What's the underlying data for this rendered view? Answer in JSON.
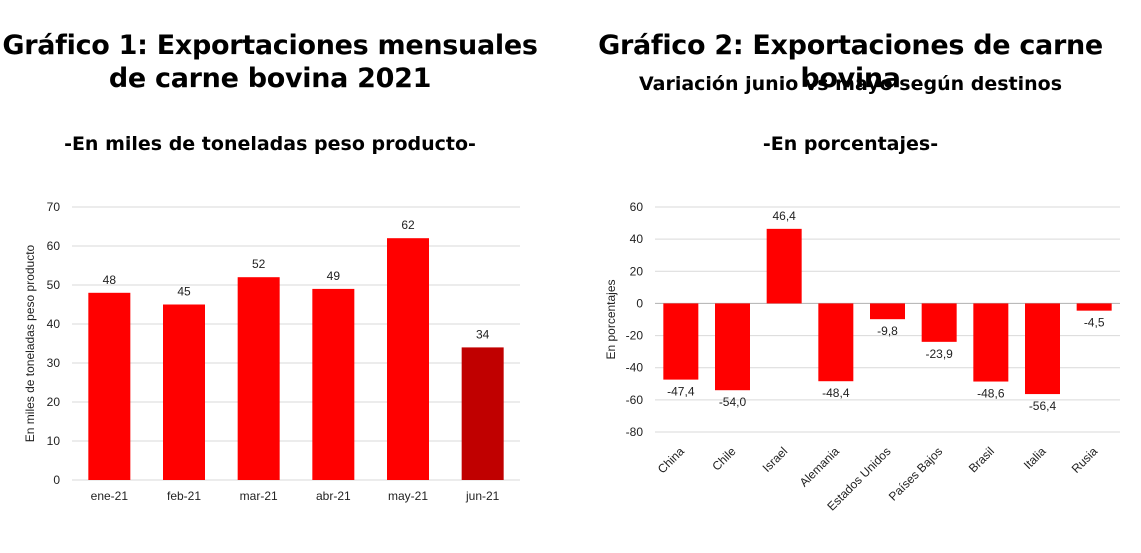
{
  "chart_data": [
    {
      "type": "bar",
      "title": "Gráfico 1: Exportaciones mensuales de carne bovina 2021",
      "subtitle": "-En miles de toneladas peso producto-",
      "xlabel": "",
      "ylabel": "En  miles de toneladas peso producto",
      "categories": [
        "ene-21",
        "feb-21",
        "mar-21",
        "abr-21",
        "may-21",
        "jun-21"
      ],
      "values": [
        48,
        45,
        52,
        49,
        62,
        34
      ],
      "value_labels": [
        "48",
        "45",
        "52",
        "49",
        "62",
        "34"
      ],
      "y_ticks": [
        "0",
        "10",
        "20",
        "30",
        "40",
        "50",
        "60",
        "70"
      ],
      "ylim": [
        0,
        70
      ],
      "grid": true,
      "bar_colors": [
        "#ff0000",
        "#ff0000",
        "#ff0000",
        "#ff0000",
        "#ff0000",
        "#c00000"
      ]
    },
    {
      "type": "bar",
      "title": "Gráfico 2: Exportaciones de carne bovina",
      "subtitle": "Variación junio vs mayo según destinos",
      "unit_note": "-En porcentajes-",
      "xlabel": "",
      "ylabel": "En porcentajes",
      "categories": [
        "China",
        "Chile",
        "Israel",
        "Alemania",
        "Estados Unidos",
        "Países Bajos",
        "Brasil",
        "Italia",
        "Rusia"
      ],
      "values": [
        -47.4,
        -54.0,
        46.4,
        -48.4,
        -9.8,
        -23.9,
        -48.6,
        -56.4,
        -4.5
      ],
      "value_labels": [
        "-47,4",
        "-54,0",
        "46,4",
        "-48,4",
        "-9,8",
        "-23,9",
        "-48,6",
        "-56,4",
        "-4,5"
      ],
      "y_ticks": [
        "-80",
        "-60",
        "-40",
        "-20",
        "0",
        "20",
        "40",
        "60"
      ],
      "ylim": [
        -80,
        60
      ],
      "grid": true,
      "bar_color": "#ff0000"
    }
  ]
}
